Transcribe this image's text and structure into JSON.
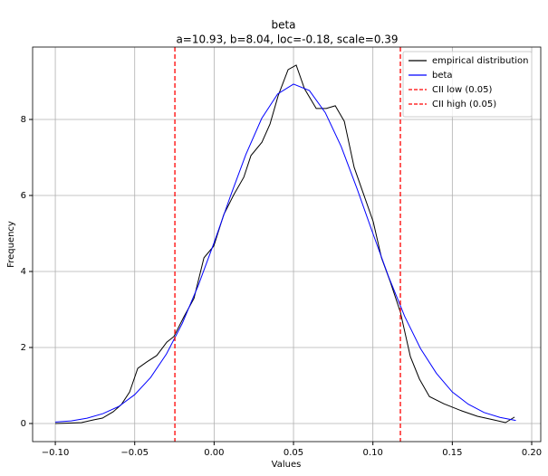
{
  "chart_data": {
    "type": "line",
    "title": "beta",
    "subtitle": "a=10.93, b=8.04, loc=-0.18, scale=0.39",
    "xlabel": "Values",
    "ylabel": "Frequency",
    "xlim": [
      -0.1143,
      0.2057
    ],
    "ylim": [
      -0.476,
      9.905
    ],
    "xticks": [
      {
        "value": -0.1,
        "label": "−0.10"
      },
      {
        "value": -0.05,
        "label": "−0.05"
      },
      {
        "value": 0,
        "label": "0.00"
      },
      0.05,
      {
        "value": 0.1,
        "label": "0.10"
      },
      0.15,
      {
        "value": 0.2,
        "label": "0.20"
      }
    ],
    "yticks": [
      0,
      2,
      4,
      6,
      8
    ],
    "grid": true,
    "legend": "upper right",
    "series": [
      {
        "name": "empirical distribution",
        "color": "#000000",
        "x": [
          -0.1,
          -0.0835,
          -0.076,
          -0.0703,
          -0.0635,
          -0.0584,
          -0.0532,
          -0.0481,
          -0.0424,
          -0.0361,
          -0.0298,
          -0.0253,
          -0.019,
          -0.0127,
          -0.0064,
          -0.0002,
          0.0061,
          0.0124,
          0.0187,
          0.0232,
          0.0301,
          0.0352,
          0.0403,
          0.0466,
          0.0517,
          0.0569,
          0.0643,
          0.0706,
          0.0763,
          0.082,
          0.0882,
          0.094,
          0.1002,
          0.1054,
          0.1111,
          0.1173,
          0.1236,
          0.1293,
          0.1356,
          0.1447,
          0.1561,
          0.1658,
          0.1761,
          0.1835,
          0.1892
        ],
        "values": [
          0,
          0.024,
          0.095,
          0.143,
          0.31,
          0.5,
          0.83,
          1.45,
          1.62,
          1.79,
          2.14,
          2.29,
          2.81,
          3.29,
          4.36,
          4.67,
          5.5,
          6.02,
          6.48,
          7.05,
          7.4,
          7.88,
          8.62,
          9.31,
          9.43,
          8.81,
          8.29,
          8.29,
          8.36,
          7.95,
          6.74,
          6.05,
          5.31,
          4.36,
          3.71,
          2.93,
          1.76,
          1.17,
          0.71,
          0.52,
          0.33,
          0.19,
          0.095,
          0.024,
          0.17
        ]
      },
      {
        "name": "beta",
        "color": "#0000ff",
        "x": [
          -0.1,
          -0.09,
          -0.08,
          -0.07,
          -0.06,
          -0.05,
          -0.04,
          -0.03,
          -0.02,
          -0.01,
          0,
          0.01,
          0.02,
          0.03,
          0.04,
          0.05,
          0.06,
          0.07,
          0.08,
          0.09,
          0.1,
          0.11,
          0.12,
          0.13,
          0.14,
          0.15,
          0.16,
          0.17,
          0.18,
          0.19
        ],
        "values": [
          0.04,
          0.07,
          0.14,
          0.26,
          0.45,
          0.76,
          1.21,
          1.83,
          2.64,
          3.63,
          4.76,
          5.95,
          7.08,
          8.03,
          8.67,
          8.93,
          8.76,
          8.18,
          7.29,
          6.18,
          5.0,
          3.85,
          2.82,
          1.97,
          1.32,
          0.83,
          0.51,
          0.29,
          0.16,
          0.08
        ]
      }
    ],
    "vlines": [
      {
        "name": "CII low (0.05)",
        "color": "#ff0000",
        "value": -0.0247
      },
      {
        "name": "CII high (0.05)",
        "color": "#ff0000",
        "value": 0.1173
      }
    ]
  }
}
